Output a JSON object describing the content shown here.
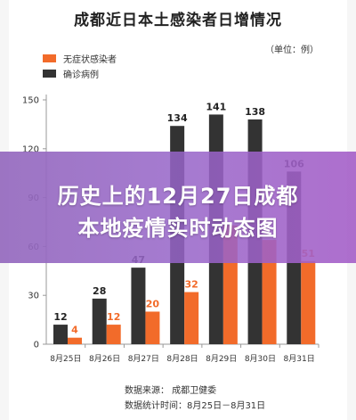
{
  "title": "成都近日本土感染者日增情况",
  "unit": "（单位：例）",
  "overlay": {
    "line1": "历史上的12月27日成都",
    "line2": "本地疫情实时动态图"
  },
  "footer": {
    "source": "数据来源：  成都卫健委",
    "period": "数据统计时间：8月25日－8月31日"
  },
  "colors": {
    "asymptomatic": "#f26b2a",
    "confirmed": "#333333",
    "axis": "#999999"
  },
  "chart_data": {
    "type": "bar",
    "categories": [
      "8月25日",
      "8月26日",
      "8月27日",
      "8月28日",
      "8月29日",
      "8月30日",
      "8月31日"
    ],
    "series": [
      {
        "name": "无症状感染者",
        "values": [
          4,
          12,
          20,
          32,
          73,
          64,
          51
        ]
      },
      {
        "name": "确诊病例",
        "values": [
          12,
          28,
          47,
          134,
          141,
          138,
          106
        ]
      }
    ],
    "data_labels": [
      [
        "4",
        "12",
        "20",
        "32",
        "",
        "",
        "51"
      ],
      [
        "12",
        "28",
        "47",
        "134",
        "141",
        "138",
        "106"
      ]
    ],
    "yticks": [
      0,
      30,
      60,
      90,
      120,
      150
    ],
    "ylim": [
      0,
      150
    ],
    "legend_position": "top-left"
  }
}
